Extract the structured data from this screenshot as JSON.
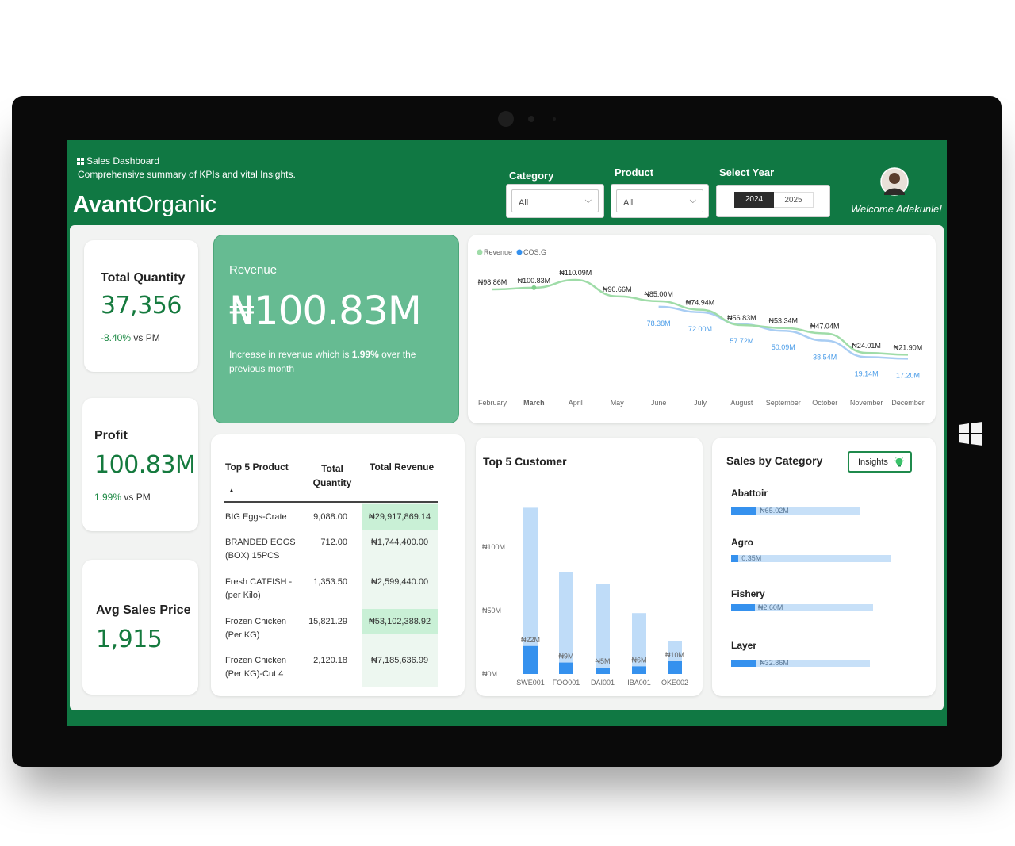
{
  "header": {
    "dashboard_title": "Sales Dashboard",
    "subtitle": "Comprehensive summary of KPIs and vital Insights.",
    "brand_bold": "Avant",
    "brand_light": "Organic",
    "welcome": "Welcome Adekunle!"
  },
  "filters": {
    "category_label": "Category",
    "category_value": "All",
    "product_label": "Product",
    "product_value": "All",
    "year_label": "Select Year",
    "years": [
      "2024",
      "2025"
    ],
    "selected_year": "2024"
  },
  "kpis": {
    "quantity": {
      "title": "Total Quantity",
      "value": "37,356",
      "delta": "-8.40%",
      "delta_suffix": " vs PM"
    },
    "profit": {
      "title": "Profit",
      "value": "100.83M",
      "delta": "1.99%",
      "delta_suffix": " vs PM"
    },
    "avg_price": {
      "title": "Avg Sales Price",
      "value": "1,915"
    }
  },
  "revenue_card": {
    "title": "Revenue",
    "value": "₦100.83M",
    "desc_prefix": "Increase in revenue which is ",
    "desc_pct": "1.99%",
    "desc_suffix": " over the previous month"
  },
  "top_products": {
    "headers": [
      "Top 5 Product",
      "Total Quantity",
      "Total Revenue"
    ],
    "sort_indicator": "▲",
    "rows": [
      {
        "product": "BIG Eggs-Crate",
        "qty": "9,088.00",
        "revenue": "₦29,917,869.14"
      },
      {
        "product": "BRANDED EGGS (BOX) 15PCS",
        "qty": "712.00",
        "revenue": "₦1,744,400.00"
      },
      {
        "product": "Fresh CATFISH - (per Kilo)",
        "qty": "1,353.50",
        "revenue": "₦2,599,440.00"
      },
      {
        "product": "Frozen Chicken (Per KG)",
        "qty": "15,821.29",
        "revenue": "₦53,102,388.92"
      },
      {
        "product": "Frozen Chicken (Per KG)-Cut 4",
        "qty": "2,120.18",
        "revenue": "₦7,185,636.99"
      }
    ]
  },
  "chart_data": [
    {
      "type": "line",
      "title": "",
      "legend": [
        "Revenue",
        "COS.G"
      ],
      "legend_position": "top-left",
      "categories": [
        "February",
        "March",
        "April",
        "May",
        "June",
        "July",
        "August",
        "September",
        "October",
        "November",
        "December"
      ],
      "series": [
        {
          "name": "Revenue",
          "values": [
            98.86,
            100.83,
            110.09,
            90.66,
            85.0,
            74.94,
            56.83,
            53.34,
            47.04,
            24.01,
            21.9
          ],
          "labels": [
            "₦98.86M",
            "₦100.83M",
            "₦110.09M",
            "₦90.66M",
            "₦85.00M",
            "₦74.94M",
            "₦56.83M",
            "₦53.34M",
            "₦47.04M",
            "₦24.01M",
            "₦21.90M"
          ],
          "color": "#9fdca8"
        },
        {
          "name": "COS.G",
          "values": [
            null,
            null,
            null,
            null,
            78.38,
            72.0,
            57.72,
            50.09,
            38.54,
            19.14,
            17.2
          ],
          "labels": [
            "",
            "",
            "",
            "",
            "78.38M",
            "72.00M",
            "57.72M",
            "50.09M",
            "38.54M",
            "19.14M",
            "17.20M"
          ],
          "color": "#a9cdf3"
        }
      ],
      "grid": false
    },
    {
      "type": "bar",
      "title": "Top 5 Customer",
      "categories": [
        "SWE001",
        "FOO001",
        "DAI001",
        "IBA001",
        "OKE002"
      ],
      "series": [
        {
          "values": [
            131,
            80,
            71,
            48,
            26
          ],
          "color": "#bfdcf8"
        },
        {
          "values": [
            22,
            9,
            5,
            6,
            10
          ],
          "labels": [
            "₦22M",
            "₦9M",
            "₦5M",
            "₦6M",
            "₦10M"
          ],
          "color": "#3591ee"
        }
      ],
      "yticks": [
        "₦0M",
        "₦50M",
        "₦100M"
      ],
      "ylim": [
        0,
        140
      ]
    },
    {
      "type": "bar",
      "title": "Sales by Category",
      "orientation": "horizontal",
      "categories": [
        "Abattoir",
        "Agro",
        "Fishery",
        "Layer"
      ],
      "values": [
        65.02,
        0.35,
        2.6,
        32.86
      ],
      "labels": [
        "₦65.02M",
        "0.35M",
        "₦2.60M",
        "₦32.86M"
      ],
      "fill_fraction": [
        0.14,
        0.04,
        0.13,
        0.14
      ],
      "track_fraction": [
        0.71,
        0.88,
        0.78,
        0.76
      ],
      "color": "#3591ee"
    }
  ],
  "insights_button": "Insights",
  "colors": {
    "brand_green": "#107843",
    "accent_green": "#66bb92",
    "bar_blue": "#3591ee",
    "bar_light": "#bfdcf8"
  }
}
